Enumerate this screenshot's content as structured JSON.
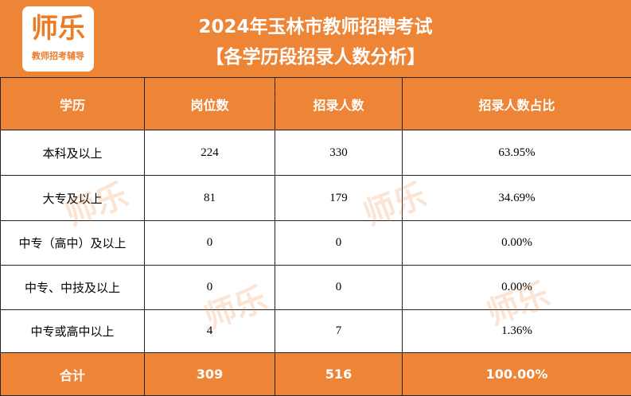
{
  "header": {
    "logo": {
      "name": "师乐",
      "tagline": "教师招考辅导"
    },
    "title": "2024年玉林市教师招聘考试",
    "subtitle": "【各学历段招录人数分析】"
  },
  "table": {
    "columns": [
      "学历",
      "岗位数",
      "招录人数",
      "招录人数占比"
    ],
    "rows": [
      [
        "本科及以上",
        "224",
        "330",
        "63.95%"
      ],
      [
        "大专及以上",
        "81",
        "179",
        "34.69%"
      ],
      [
        "中专（高中）及以上",
        "0",
        "0",
        "0.00%"
      ],
      [
        "中专、中技及以上",
        "0",
        "0",
        "0.00%"
      ],
      [
        "中专或高中以上",
        "4",
        "7",
        "1.36%"
      ]
    ],
    "total": [
      "合计",
      "309",
      "516",
      "100.00%"
    ]
  }
}
